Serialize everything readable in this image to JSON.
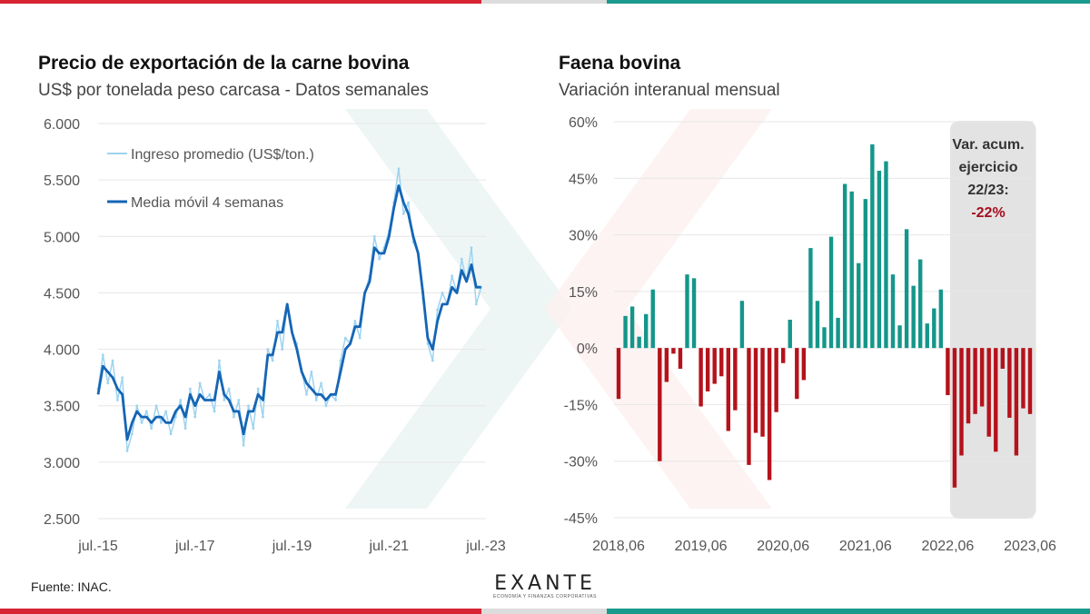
{
  "colors": {
    "red_brand": "#d62433",
    "teal_brand": "#1a9a8c",
    "grey_strip": "#dcdcdc",
    "weekly_line": "#9dd3f0",
    "ma_line": "#1565b5",
    "bar_positive": "#15968a",
    "bar_negative": "#b5121b",
    "highlight_bg": "#e3e3e3"
  },
  "left_chart": {
    "title": "Precio de exportación de la carne bovina",
    "subtitle": "US$ por tonelada peso carcasa - Datos semanales"
  },
  "right_chart": {
    "title": "Faena bovina",
    "subtitle": "Variación interanual mensual",
    "annotation": {
      "line1": "Var. acum.",
      "line2": "ejercicio",
      "line3": "22/23:",
      "value": "-22%"
    }
  },
  "footer": {
    "source": "Fuente: INAC.",
    "logo_text": "EXANTE",
    "logo_tagline": "ECONOMÍA Y FINANZAS CORPORATIVAS"
  },
  "chart_data": [
    {
      "type": "line",
      "title": "Precio de exportación de la carne bovina",
      "subtitle": "US$ por tonelada peso carcasa - Datos semanales",
      "xlabel": "",
      "ylabel": "US$/ton",
      "ylim": [
        2500,
        6000
      ],
      "yticks": [
        2500,
        3000,
        3500,
        4000,
        4500,
        5000,
        5500,
        6000
      ],
      "ytick_labels": [
        "2.500",
        "3.000",
        "3.500",
        "4.000",
        "4.500",
        "5.000",
        "5.500",
        "6.000"
      ],
      "xticks": [
        "jul.-15",
        "jul.-17",
        "jul.-19",
        "jul.-21",
        "jul.-23"
      ],
      "x_range": [
        2015.5,
        2023.5
      ],
      "grid": true,
      "legend_position": "top-left",
      "series": [
        {
          "name": "Ingreso promedio (US$/ton.)",
          "style": "weekly",
          "x": [
            2015.5,
            2015.6,
            2015.7,
            2015.8,
            2015.9,
            2016.0,
            2016.1,
            2016.2,
            2016.3,
            2016.4,
            2016.5,
            2016.6,
            2016.7,
            2016.8,
            2016.9,
            2017.0,
            2017.1,
            2017.2,
            2017.3,
            2017.4,
            2017.5,
            2017.6,
            2017.7,
            2017.8,
            2017.9,
            2018.0,
            2018.1,
            2018.2,
            2018.3,
            2018.4,
            2018.5,
            2018.6,
            2018.7,
            2018.8,
            2018.9,
            2019.0,
            2019.1,
            2019.2,
            2019.3,
            2019.4,
            2019.5,
            2019.6,
            2019.7,
            2019.8,
            2019.9,
            2020.0,
            2020.1,
            2020.2,
            2020.3,
            2020.4,
            2020.5,
            2020.6,
            2020.7,
            2020.8,
            2020.9,
            2021.0,
            2021.1,
            2021.2,
            2021.3,
            2021.4,
            2021.5,
            2021.6,
            2021.7,
            2021.8,
            2021.9,
            2022.0,
            2022.1,
            2022.2,
            2022.3,
            2022.4,
            2022.5,
            2022.6,
            2022.7,
            2022.8,
            2022.9,
            2023.0,
            2023.1,
            2023.2,
            2023.3,
            2023.4
          ],
          "y": [
            3650,
            3950,
            3700,
            3900,
            3550,
            3750,
            3100,
            3250,
            3500,
            3350,
            3450,
            3300,
            3500,
            3350,
            3450,
            3250,
            3400,
            3550,
            3300,
            3650,
            3400,
            3700,
            3550,
            3600,
            3450,
            3900,
            3550,
            3650,
            3400,
            3550,
            3150,
            3500,
            3300,
            3650,
            3400,
            4000,
            3900,
            4250,
            4000,
            4400,
            4150,
            4050,
            3800,
            3600,
            3800,
            3550,
            3700,
            3500,
            3600,
            3550,
            3900,
            4100,
            4050,
            4250,
            4100,
            4500,
            4650,
            5000,
            4800,
            4900,
            5050,
            5300,
            5600,
            5200,
            5300,
            4950,
            4850,
            4450,
            4050,
            3900,
            4350,
            4500,
            4400,
            4650,
            4500,
            4800,
            4600,
            4900,
            4400,
            4550
          ]
        },
        {
          "name": "Media móvil 4 semanas",
          "style": "moving-average",
          "x": [
            2015.5,
            2015.6,
            2015.7,
            2015.8,
            2015.9,
            2016.0,
            2016.1,
            2016.2,
            2016.3,
            2016.4,
            2016.5,
            2016.6,
            2016.7,
            2016.8,
            2016.9,
            2017.0,
            2017.1,
            2017.2,
            2017.3,
            2017.4,
            2017.5,
            2017.6,
            2017.7,
            2017.8,
            2017.9,
            2018.0,
            2018.1,
            2018.2,
            2018.3,
            2018.4,
            2018.5,
            2018.6,
            2018.7,
            2018.8,
            2018.9,
            2019.0,
            2019.1,
            2019.2,
            2019.3,
            2019.4,
            2019.5,
            2019.6,
            2019.7,
            2019.8,
            2019.9,
            2020.0,
            2020.1,
            2020.2,
            2020.3,
            2020.4,
            2020.5,
            2020.6,
            2020.7,
            2020.8,
            2020.9,
            2021.0,
            2021.1,
            2021.2,
            2021.3,
            2021.4,
            2021.5,
            2021.6,
            2021.7,
            2021.8,
            2021.9,
            2022.0,
            2022.1,
            2022.2,
            2022.3,
            2022.4,
            2022.5,
            2022.6,
            2022.7,
            2022.8,
            2022.9,
            2023.0,
            2023.1,
            2023.2,
            2023.3,
            2023.4
          ],
          "y": [
            3600,
            3850,
            3800,
            3750,
            3650,
            3600,
            3200,
            3350,
            3450,
            3400,
            3400,
            3350,
            3400,
            3400,
            3350,
            3350,
            3450,
            3500,
            3400,
            3600,
            3500,
            3600,
            3550,
            3550,
            3550,
            3800,
            3600,
            3550,
            3450,
            3450,
            3250,
            3450,
            3450,
            3600,
            3550,
            3950,
            3950,
            4150,
            4150,
            4400,
            4150,
            4000,
            3800,
            3700,
            3650,
            3600,
            3600,
            3550,
            3600,
            3600,
            3800,
            4000,
            4050,
            4200,
            4200,
            4500,
            4600,
            4900,
            4850,
            4850,
            5000,
            5250,
            5450,
            5300,
            5200,
            5000,
            4850,
            4500,
            4100,
            4000,
            4250,
            4400,
            4400,
            4550,
            4500,
            4700,
            4600,
            4750,
            4550,
            4550
          ]
        }
      ]
    },
    {
      "type": "bar",
      "title": "Faena bovina",
      "subtitle": "Variación interanual mensual",
      "xlabel": "",
      "ylabel": "%",
      "ylim": [
        -45,
        60
      ],
      "yticks": [
        -45,
        -30,
        -15,
        0,
        15,
        30,
        45,
        60
      ],
      "ytick_labels": [
        "-45%",
        "-30%",
        "-15%",
        "0%",
        "15%",
        "30%",
        "45%",
        "60%"
      ],
      "xtick_labels": [
        "2018,06",
        "2019,06",
        "2020,06",
        "2021,06",
        "2022,06",
        "2023,06"
      ],
      "grid": true,
      "highlight": {
        "from": "2022,07",
        "to": "2023,06",
        "label": "Var. acum. ejercicio 22/23: -22%"
      },
      "categories": [
        "2018,06",
        "2018,07",
        "2018,08",
        "2018,09",
        "2018,10",
        "2018,11",
        "2018,12",
        "2019,01",
        "2019,02",
        "2019,03",
        "2019,04",
        "2019,05",
        "2019,06",
        "2019,07",
        "2019,08",
        "2019,09",
        "2019,10",
        "2019,11",
        "2019,12",
        "2020,01",
        "2020,02",
        "2020,03",
        "2020,04",
        "2020,05",
        "2020,06",
        "2020,07",
        "2020,08",
        "2020,09",
        "2020,10",
        "2020,11",
        "2020,12",
        "2021,01",
        "2021,02",
        "2021,03",
        "2021,04",
        "2021,05",
        "2021,06",
        "2021,07",
        "2021,08",
        "2021,09",
        "2021,10",
        "2021,11",
        "2021,12",
        "2022,01",
        "2022,02",
        "2022,03",
        "2022,04",
        "2022,05",
        "2022,06",
        "2022,07",
        "2022,08",
        "2022,09",
        "2022,10",
        "2022,11",
        "2022,12",
        "2023,01",
        "2023,02",
        "2023,03",
        "2023,04",
        "2023,05",
        "2023,06"
      ],
      "values": [
        -13.5,
        8.5,
        11,
        3,
        9,
        15.5,
        -30,
        -9,
        -1.5,
        -5.5,
        19.5,
        18.5,
        -15.5,
        -11.5,
        -9.5,
        -7.5,
        -22,
        -16.5,
        12.5,
        -31,
        -22.5,
        -23.5,
        -35,
        -17,
        -4,
        7.5,
        -13.5,
        -8.5,
        26.5,
        12.5,
        5.5,
        29.5,
        8,
        43.5,
        41.5,
        22.5,
        39.5,
        54,
        47,
        49.5,
        19.5,
        6,
        31.5,
        16.5,
        23.5,
        6.5,
        10.5,
        15.5,
        -12.5,
        -37,
        -28.5,
        -20,
        -17.5,
        -15.5,
        -23.5,
        -27.5,
        -5.5,
        -18.5,
        -28.5,
        -16,
        -17.5
      ]
    }
  ]
}
